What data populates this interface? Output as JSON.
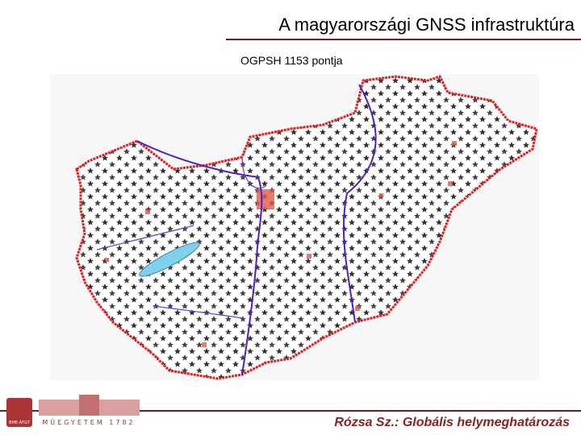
{
  "header": {
    "title": "A magyarországi GNSS infrastruktúra",
    "subtitle": "OGPSH 1153 pontja"
  },
  "footer": {
    "logo_badge": "BME-ÁFGT",
    "logo_text": "MŰEGYETEM 1782",
    "credit": "Rózsa Sz.: Globális helymeghatározás"
  }
}
